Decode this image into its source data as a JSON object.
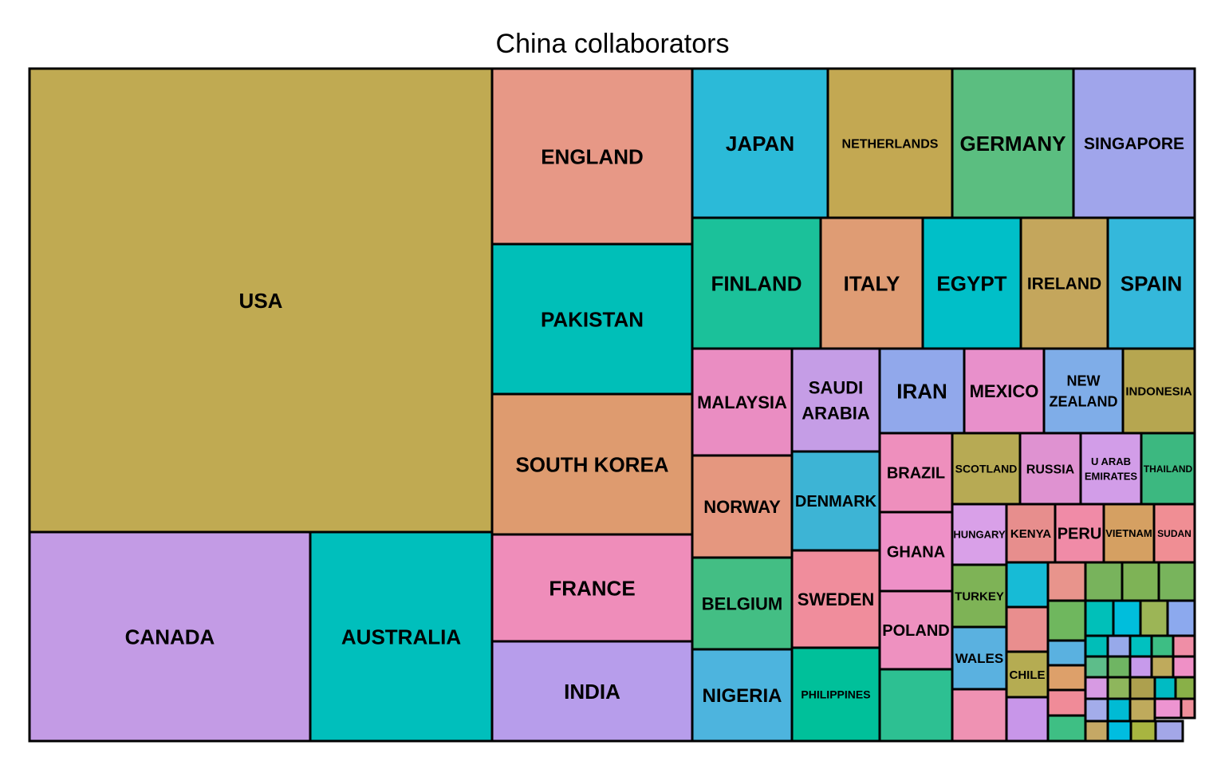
{
  "chart_data": {
    "type": "treemap",
    "title": "China collaborators",
    "cells": [
      {
        "label": "USA",
        "color": "#C0AA52"
      },
      {
        "label": "CANADA",
        "color": "#C39BE5"
      },
      {
        "label": "AUSTRALIA",
        "color": "#00BFBC"
      },
      {
        "label": "ENGLAND",
        "color": "#E79886"
      },
      {
        "label": "PAKISTAN",
        "color": "#00BFB8"
      },
      {
        "label": "SOUTH KOREA",
        "color": "#DE9B6F"
      },
      {
        "label": "FRANCE",
        "color": "#EF8DBA"
      },
      {
        "label": "INDIA",
        "color": "#B79DEB"
      },
      {
        "label": "JAPAN",
        "color": "#2BBAD8"
      },
      {
        "label": "NETHERLANDS",
        "color": "#C3A852"
      },
      {
        "label": "GERMANY",
        "color": "#5BBE80"
      },
      {
        "label": "SINGAPORE",
        "color": "#A0A5EB"
      },
      {
        "label": "FINLAND",
        "color": "#1BC19A"
      },
      {
        "label": "ITALY",
        "color": "#DF9C74"
      },
      {
        "label": "EGYPT",
        "color": "#00BFC8"
      },
      {
        "label": "IRELAND",
        "color": "#C4A65C"
      },
      {
        "label": "SPAIN",
        "color": "#34B8DB"
      },
      {
        "label": "MALAYSIA",
        "color": "#EA8DC2"
      },
      {
        "label": "SAUDI ARABIA",
        "color": "#C59DE6"
      },
      {
        "label": "IRAN",
        "color": "#91A8EB"
      },
      {
        "label": "MEXICO",
        "color": "#E890CB"
      },
      {
        "label": "NEW ZEALAND",
        "color": "#7FADE8"
      },
      {
        "label": "INDONESIA",
        "color": "#B6A650"
      },
      {
        "label": "NORWAY",
        "color": "#E5977F"
      },
      {
        "label": "DENMARK",
        "color": "#3DB4D5"
      },
      {
        "label": "BRAZIL",
        "color": "#EE8FBD"
      },
      {
        "label": "SCOTLAND",
        "color": "#B7AA54"
      },
      {
        "label": "RUSSIA",
        "color": "#DF92D1"
      },
      {
        "label": "U ARAB EMIRATES",
        "color": "#D29DE8"
      },
      {
        "label": "THAILAND",
        "color": "#3CB880"
      },
      {
        "label": "GHANA",
        "color": "#EE90C7"
      },
      {
        "label": "HUNGARY",
        "color": "#D9A0E8"
      },
      {
        "label": "KENYA",
        "color": "#E78E8D"
      },
      {
        "label": "PERU",
        "color": "#F08BA7"
      },
      {
        "label": "VIETNAM",
        "color": "#D5A062"
      },
      {
        "label": "SUDAN",
        "color": "#F08E94"
      },
      {
        "label": "BELGIUM",
        "color": "#43BE84"
      },
      {
        "label": "SWEDEN",
        "color": "#F08D9C"
      },
      {
        "label": "POLAND",
        "color": "#EE91C0"
      },
      {
        "label": "TURKEY",
        "color": "#7EB356"
      },
      {
        "label": "NIGERIA",
        "color": "#4DB4DE"
      },
      {
        "label": "PHILIPPINES",
        "color": "#00C09A"
      },
      {
        "label": "WALES",
        "color": "#5AB1E0"
      },
      {
        "label": "CHILE",
        "color": "#B5AC52"
      },
      {
        "label": "",
        "color": "#2DC092"
      },
      {
        "label": "",
        "color": "#EF92B3"
      },
      {
        "label": "",
        "color": "#C896E9"
      },
      {
        "label": "",
        "color": "#17BBD6"
      },
      {
        "label": "",
        "color": "#E98E8E"
      },
      {
        "label": "",
        "color": "#E8948C"
      },
      {
        "label": "",
        "color": "#78B35C"
      },
      {
        "label": "",
        "color": "#7EB356"
      },
      {
        "label": "",
        "color": "#78B45C"
      },
      {
        "label": "",
        "color": "#6FB75E"
      },
      {
        "label": "",
        "color": "#5AB1E0"
      },
      {
        "label": "",
        "color": "#DDA06A"
      },
      {
        "label": "",
        "color": "#F08B98"
      },
      {
        "label": "",
        "color": "#3EBF84"
      },
      {
        "label": "",
        "color": "#00C0B9"
      },
      {
        "label": "",
        "color": "#00BEDC"
      },
      {
        "label": "",
        "color": "#9CB556"
      },
      {
        "label": "",
        "color": "#8CA9EE"
      },
      {
        "label": "",
        "color": "#00BEB8"
      },
      {
        "label": "",
        "color": "#97A9EA"
      },
      {
        "label": "",
        "color": "#00C1C0"
      },
      {
        "label": "",
        "color": "#3DBE84"
      },
      {
        "label": "",
        "color": "#EF8EA6"
      },
      {
        "label": "",
        "color": "#5DBD8A"
      },
      {
        "label": "",
        "color": "#6FB563"
      },
      {
        "label": "",
        "color": "#C79AEB"
      },
      {
        "label": "",
        "color": "#BFAA5C"
      },
      {
        "label": "",
        "color": "#EF90C6"
      },
      {
        "label": "",
        "color": "#D79AE3"
      },
      {
        "label": "",
        "color": "#8EB65C"
      },
      {
        "label": "",
        "color": "#ADA04E"
      },
      {
        "label": "",
        "color": "#00BBC3"
      },
      {
        "label": "",
        "color": "#89B048"
      },
      {
        "label": "",
        "color": "#A3ACEA"
      },
      {
        "label": "",
        "color": "#00BBD4"
      },
      {
        "label": "",
        "color": "#BFAA5C"
      },
      {
        "label": "",
        "color": "#ED94D1"
      },
      {
        "label": "",
        "color": "#EF8F9A"
      },
      {
        "label": "",
        "color": "#C5A865"
      },
      {
        "label": "",
        "color": "#00BDE0"
      },
      {
        "label": "",
        "color": "#A8B540"
      },
      {
        "label": "",
        "color": "#A3A7E8"
      }
    ]
  }
}
